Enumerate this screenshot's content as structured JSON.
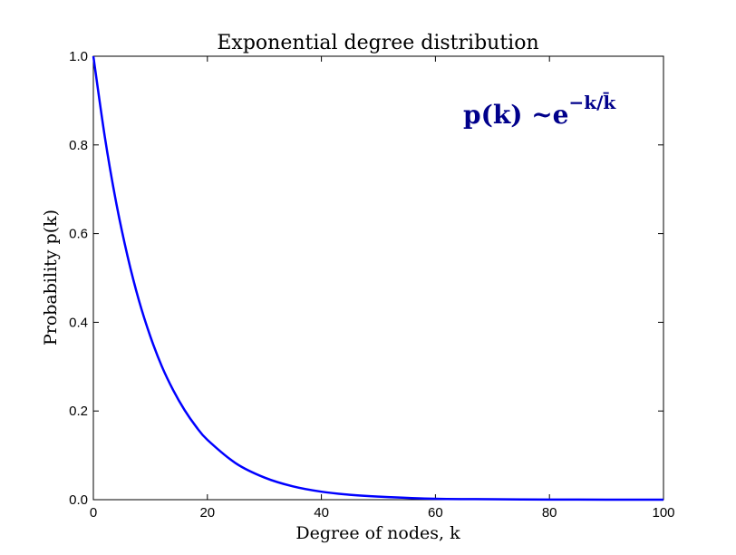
{
  "chart_data": {
    "type": "line",
    "title": "Exponential degree distribution",
    "xlabel": "Degree of nodes, k",
    "ylabel": "Probability p(k)",
    "xlim": [
      0,
      100
    ],
    "ylim": [
      0,
      1.0
    ],
    "x_ticks": [
      "0",
      "20",
      "40",
      "60",
      "80",
      "100"
    ],
    "y_ticks": [
      "0.0",
      "0.2",
      "0.4",
      "0.6",
      "0.8",
      "1.0"
    ],
    "grid": false,
    "legend": "none",
    "series": [
      {
        "color": "#0000ff",
        "x": [
          0,
          2,
          4,
          6,
          8,
          10,
          12,
          14,
          16,
          18,
          20,
          25,
          30,
          35,
          40,
          45,
          50,
          60,
          70,
          80,
          90,
          100
        ],
        "y": [
          1.0,
          0.819,
          0.67,
          0.549,
          0.449,
          0.368,
          0.301,
          0.247,
          0.202,
          0.165,
          0.135,
          0.082,
          0.05,
          0.03,
          0.018,
          0.011,
          0.007,
          0.002,
          0.001,
          0.0003,
          0.0001,
          0.0
        ]
      }
    ],
    "annotation": {
      "main": "p(k) ~e",
      "superscript": "−k/k̄",
      "color": "#00008b",
      "position": "top-right"
    }
  }
}
